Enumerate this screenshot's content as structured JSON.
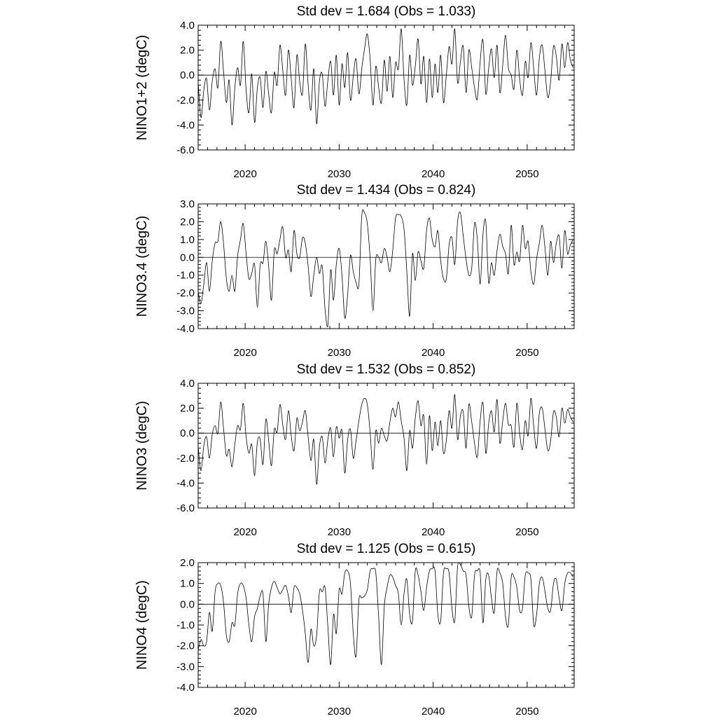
{
  "chart_data": [
    {
      "type": "line",
      "title": "Std dev = 1.684 (Obs = 1.033)",
      "ylabel": "NINO1+2 (degC)",
      "xlim": [
        2015,
        2055
      ],
      "ylim": [
        -6.0,
        4.0
      ],
      "xticks": [
        2020,
        2030,
        2040,
        2050
      ],
      "xtick_labels": [
        "2020",
        "2030",
        "2040",
        "2050"
      ],
      "yticks": [
        -6.0,
        -4.0,
        -2.0,
        0.0,
        2.0,
        4.0
      ],
      "ytick_labels": [
        "-6.0",
        "-4.0",
        "-2.0",
        "0.0",
        "2.0",
        "4.0"
      ],
      "grid": false,
      "x": [
        2015.0,
        2015.3,
        2015.6,
        2015.9,
        2016.2,
        2016.5,
        2016.8,
        2017.1,
        2017.4,
        2017.7,
        2018.0,
        2018.3,
        2018.6,
        2018.9,
        2019.2,
        2019.5,
        2019.8,
        2020.1,
        2020.4,
        2020.7,
        2021.0,
        2021.3,
        2021.6,
        2021.9,
        2022.2,
        2022.5,
        2022.8,
        2023.1,
        2023.4,
        2023.7,
        2024.0,
        2024.3,
        2024.6,
        2024.9,
        2025.2,
        2025.5,
        2025.8,
        2026.1,
        2026.4,
        2026.7,
        2027.0,
        2027.3,
        2027.6,
        2027.9,
        2028.2,
        2028.5,
        2028.8,
        2029.1,
        2029.4,
        2029.7,
        2030.0,
        2030.3,
        2030.6,
        2030.9,
        2031.2,
        2031.5,
        2031.8,
        2032.1,
        2032.4,
        2032.7,
        2033.0,
        2033.3,
        2033.6,
        2033.9,
        2034.2,
        2034.5,
        2034.8,
        2035.1,
        2035.4,
        2035.7,
        2036.0,
        2036.3,
        2036.6,
        2036.9,
        2037.2,
        2037.5,
        2037.8,
        2038.1,
        2038.4,
        2038.7,
        2039.0,
        2039.3,
        2039.6,
        2039.9,
        2040.2,
        2040.5,
        2040.8,
        2041.1,
        2041.4,
        2041.7,
        2042.0,
        2042.3,
        2042.6,
        2042.9,
        2043.2,
        2043.5,
        2043.8,
        2044.1,
        2044.4,
        2044.7,
        2045.0,
        2045.3,
        2045.6,
        2045.9,
        2046.2,
        2046.5,
        2046.8,
        2047.1,
        2047.4,
        2047.7,
        2048.0,
        2048.3,
        2048.6,
        2048.9,
        2049.2,
        2049.5,
        2049.8,
        2050.1,
        2050.4,
        2050.7,
        2051.0,
        2051.3,
        2051.6,
        2051.9,
        2052.2,
        2052.5,
        2052.8,
        2053.1,
        2053.4,
        2053.7,
        2054.0,
        2054.3,
        2054.6,
        2054.9
      ],
      "values": [
        -0.6,
        -3.4,
        -1.2,
        -0.3,
        -2.8,
        -0.5,
        0.5,
        -1.0,
        2.7,
        0.3,
        -2.2,
        -0.4,
        -4.0,
        -1.0,
        0.6,
        -0.8,
        2.7,
        -1.2,
        -3.0,
        0.1,
        -3.8,
        -1.0,
        -0.2,
        -2.6,
        0.3,
        -1.5,
        -3.0,
        0.2,
        -0.8,
        2.4,
        0.4,
        -1.6,
        2.0,
        -0.3,
        -2.6,
        1.6,
        -0.5,
        -1.5,
        2.5,
        -0.8,
        -2.8,
        0.5,
        -3.9,
        -0.5,
        0.1,
        -2.5,
        -0.4,
        1.1,
        -1.6,
        1.6,
        -2.4,
        0.9,
        -1.0,
        1.8,
        -2.0,
        -0.1,
        1.3,
        -1.5,
        0.5,
        2.1,
        3.3,
        1.2,
        -2.4,
        0.7,
        -1.0,
        -2.2,
        1.2,
        -1.3,
        1.5,
        -1.8,
        1.0,
        0.5,
        3.7,
        -0.3,
        -2.4,
        1.6,
        -0.8,
        0.7,
        2.9,
        -0.7,
        1.5,
        -2.2,
        1.3,
        -1.8,
        0.9,
        -1.4,
        1.6,
        -2.2,
        0.0,
        2.3,
        0.9,
        3.7,
        -0.6,
        1.1,
        2.3,
        -1.4,
        2.0,
        0.6,
        -1.0,
        -1.9,
        1.1,
        2.8,
        -1.5,
        0.5,
        2.1,
        -0.2,
        2.4,
        -1.4,
        0.8,
        3.2,
        0.6,
        0.0,
        -1.1,
        2.0,
        -0.3,
        -1.6,
        1.1,
        -0.2,
        2.6,
        0.5,
        -1.6,
        1.4,
        2.4,
        0.3,
        -1.8,
        -0.5,
        2.3,
        1.5,
        -0.4,
        2.5,
        0.6,
        2.6,
        1.2,
        0.6
      ]
    },
    {
      "type": "line",
      "title": "Std dev = 1.434 (Obs = 0.824)",
      "ylabel": "NINO3.4 (degC)",
      "xlim": [
        2015,
        2055
      ],
      "ylim": [
        -4.0,
        3.0
      ],
      "xticks": [
        2020,
        2030,
        2040,
        2050
      ],
      "xtick_labels": [
        "2020",
        "2030",
        "2040",
        "2050"
      ],
      "yticks": [
        -4.0,
        -3.0,
        -2.0,
        -1.0,
        0.0,
        1.0,
        2.0,
        3.0
      ],
      "ytick_labels": [
        "-4.0",
        "-3.0",
        "-2.0",
        "-1.0",
        "0.0",
        "1.0",
        "2.0",
        "3.0"
      ],
      "grid": false,
      "x": [
        2015.0,
        2015.3,
        2015.6,
        2015.9,
        2016.2,
        2016.5,
        2016.8,
        2017.1,
        2017.4,
        2017.7,
        2018.0,
        2018.3,
        2018.6,
        2018.9,
        2019.2,
        2019.5,
        2019.8,
        2020.1,
        2020.4,
        2020.7,
        2021.0,
        2021.3,
        2021.6,
        2021.9,
        2022.2,
        2022.5,
        2022.8,
        2023.1,
        2023.4,
        2023.7,
        2024.0,
        2024.3,
        2024.6,
        2024.9,
        2025.2,
        2025.5,
        2025.8,
        2026.1,
        2026.4,
        2026.7,
        2027.0,
        2027.3,
        2027.6,
        2027.9,
        2028.2,
        2028.5,
        2028.8,
        2029.1,
        2029.4,
        2029.7,
        2030.0,
        2030.3,
        2030.6,
        2030.9,
        2031.2,
        2031.5,
        2031.8,
        2032.1,
        2032.4,
        2032.7,
        2033.0,
        2033.3,
        2033.6,
        2033.9,
        2034.2,
        2034.5,
        2034.8,
        2035.1,
        2035.4,
        2035.7,
        2036.0,
        2036.3,
        2036.6,
        2036.9,
        2037.2,
        2037.5,
        2037.8,
        2038.1,
        2038.4,
        2038.7,
        2039.0,
        2039.3,
        2039.6,
        2039.9,
        2040.2,
        2040.5,
        2040.8,
        2041.1,
        2041.4,
        2041.7,
        2042.0,
        2042.3,
        2042.6,
        2042.9,
        2043.2,
        2043.5,
        2043.8,
        2044.1,
        2044.4,
        2044.7,
        2045.0,
        2045.3,
        2045.6,
        2045.9,
        2046.2,
        2046.5,
        2046.8,
        2047.1,
        2047.4,
        2047.7,
        2048.0,
        2048.3,
        2048.6,
        2048.9,
        2049.2,
        2049.5,
        2049.8,
        2050.1,
        2050.4,
        2050.7,
        2051.0,
        2051.3,
        2051.6,
        2051.9,
        2052.2,
        2052.5,
        2052.8,
        2053.1,
        2053.4,
        2053.7,
        2054.0,
        2054.3,
        2054.6,
        2054.9
      ],
      "values": [
        -1.9,
        -2.6,
        -1.5,
        -0.3,
        -1.9,
        -0.2,
        0.8,
        0.9,
        2.0,
        0.8,
        -1.2,
        -1.9,
        -1.0,
        -1.9,
        0.1,
        1.0,
        1.9,
        0.2,
        -1.2,
        -0.9,
        -0.4,
        -2.8,
        -0.4,
        -0.3,
        0.9,
        -0.5,
        -2.4,
        0.4,
        0.2,
        1.0,
        1.7,
        0.0,
        0.4,
        -0.8,
        1.5,
        0.2,
        0.0,
        1.1,
        0.8,
        -0.5,
        -2.2,
        -1.0,
        0.0,
        -0.9,
        -0.5,
        -2.9,
        -3.8,
        -0.7,
        -2.4,
        -0.4,
        0.5,
        -1.0,
        -3.4,
        -2.1,
        0.1,
        -0.8,
        -1.4,
        -1.5,
        2.3,
        2.5,
        1.9,
        -0.1,
        -3.0,
        -0.1,
        0.0,
        -0.3,
        0.5,
        0.0,
        -0.8,
        0.4,
        2.2,
        2.4,
        2.3,
        1.6,
        -0.8,
        -3.3,
        0.2,
        -1.3,
        0.3,
        -0.2,
        -0.6,
        1.5,
        2.2,
        1.0,
        0.6,
        1.5,
        -0.2,
        -1.2,
        -1.2,
        0.7,
        1.1,
        -0.4,
        2.0,
        2.5,
        1.2,
        -0.1,
        -1.0,
        -0.6,
        1.9,
        1.0,
        -1.5,
        1.3,
        2.0,
        -1.4,
        -0.3,
        -1.0,
        0.4,
        1.3,
        0.6,
        0.2,
        -0.9,
        1.8,
        -0.4,
        0.3,
        -0.2,
        1.8,
        0.5,
        0.9,
        -0.8,
        -1.5,
        -0.1,
        0.8,
        1.8,
        0.5,
        -1.0,
        0.9,
        -0.3,
        0.8,
        1.2,
        -0.6,
        1.5,
        0.2,
        0.7,
        1.0
      ]
    },
    {
      "type": "line",
      "title": "Std dev = 1.532 (Obs = 0.852)",
      "ylabel": "NINO3 (degC)",
      "xlim": [
        2015,
        2055
      ],
      "ylim": [
        -6.0,
        4.0
      ],
      "xticks": [
        2020,
        2030,
        2040,
        2050
      ],
      "xtick_labels": [
        "2020",
        "2030",
        "2040",
        "2050"
      ],
      "yticks": [
        -6.0,
        -4.0,
        -2.0,
        0.0,
        2.0,
        4.0
      ],
      "ytick_labels": [
        "-6.0",
        "-4.0",
        "-2.0",
        "0.0",
        "2.0",
        "4.0"
      ],
      "grid": false,
      "x": [
        2015.0,
        2015.3,
        2015.6,
        2015.9,
        2016.2,
        2016.5,
        2016.8,
        2017.1,
        2017.4,
        2017.7,
        2018.0,
        2018.3,
        2018.6,
        2018.9,
        2019.2,
        2019.5,
        2019.8,
        2020.1,
        2020.4,
        2020.7,
        2021.0,
        2021.3,
        2021.6,
        2021.9,
        2022.2,
        2022.5,
        2022.8,
        2023.1,
        2023.4,
        2023.7,
        2024.0,
        2024.3,
        2024.6,
        2024.9,
        2025.2,
        2025.5,
        2025.8,
        2026.1,
        2026.4,
        2026.7,
        2027.0,
        2027.3,
        2027.6,
        2027.9,
        2028.2,
        2028.5,
        2028.8,
        2029.1,
        2029.4,
        2029.7,
        2030.0,
        2030.3,
        2030.6,
        2030.9,
        2031.2,
        2031.5,
        2031.8,
        2032.1,
        2032.4,
        2032.7,
        2033.0,
        2033.3,
        2033.6,
        2033.9,
        2034.2,
        2034.5,
        2034.8,
        2035.1,
        2035.4,
        2035.7,
        2036.0,
        2036.3,
        2036.6,
        2036.9,
        2037.2,
        2037.5,
        2037.8,
        2038.1,
        2038.4,
        2038.7,
        2039.0,
        2039.3,
        2039.6,
        2039.9,
        2040.2,
        2040.5,
        2040.8,
        2041.1,
        2041.4,
        2041.7,
        2042.0,
        2042.3,
        2042.6,
        2042.9,
        2043.2,
        2043.5,
        2043.8,
        2044.1,
        2044.4,
        2044.7,
        2045.0,
        2045.3,
        2045.6,
        2045.9,
        2046.2,
        2046.5,
        2046.8,
        2047.1,
        2047.4,
        2047.7,
        2048.0,
        2048.3,
        2048.6,
        2048.9,
        2049.2,
        2049.5,
        2049.8,
        2050.1,
        2050.4,
        2050.7,
        2051.0,
        2051.3,
        2051.6,
        2051.9,
        2052.2,
        2052.5,
        2052.8,
        2053.1,
        2053.4,
        2053.7,
        2054.0,
        2054.3,
        2054.6,
        2054.9
      ],
      "values": [
        -1.1,
        -3.0,
        -1.0,
        -0.3,
        -2.0,
        -0.1,
        0.6,
        0.0,
        2.5,
        0.4,
        -1.8,
        -1.3,
        -2.7,
        -0.9,
        0.6,
        0.3,
        2.4,
        -0.3,
        -1.6,
        -0.9,
        -3.4,
        -0.7,
        -0.5,
        -2.5,
        1.1,
        -0.6,
        -2.6,
        0.3,
        0.1,
        2.3,
        0.7,
        -0.5,
        1.8,
        -0.2,
        -1.4,
        1.2,
        0.2,
        0.9,
        1.8,
        -0.3,
        -2.2,
        -0.5,
        -4.1,
        -1.1,
        -0.3,
        -2.4,
        -0.5,
        0.4,
        -1.9,
        0.5,
        -0.4,
        0.2,
        -3.2,
        -0.5,
        0.3,
        -2.0,
        -0.6,
        1.0,
        2.3,
        2.8,
        2.3,
        0.0,
        -2.9,
        0.2,
        -0.8,
        0.4,
        -0.2,
        -0.6,
        0.9,
        2.0,
        1.3,
        2.5,
        1.0,
        -0.4,
        -3.0,
        0.2,
        -1.2,
        1.2,
        2.6,
        0.6,
        1.4,
        -2.5,
        1.4,
        -1.4,
        0.9,
        -1.0,
        1.0,
        -1.6,
        -0.6,
        1.8,
        0.4,
        3.1,
        -0.5,
        1.4,
        1.7,
        -1.2,
        2.3,
        0.9,
        -0.8,
        -1.9,
        1.0,
        2.4,
        -1.6,
        0.7,
        1.8,
        0.1,
        2.7,
        -0.8,
        1.0,
        2.4,
        0.7,
        0.6,
        -1.1,
        2.4,
        0.0,
        -1.3,
        1.0,
        -0.2,
        2.8,
        0.5,
        -1.2,
        1.6,
        2.0,
        0.3,
        -1.4,
        -0.6,
        1.7,
        1.3,
        -0.3,
        2.0,
        0.8,
        1.9,
        1.3,
        0.9
      ]
    },
    {
      "type": "line",
      "title": "Std dev = 1.125 (Obs = 0.615)",
      "ylabel": "NINO4 (degC)",
      "xlim": [
        2015,
        2055
      ],
      "ylim": [
        -4.0,
        2.0
      ],
      "xticks": [
        2020,
        2030,
        2040,
        2050
      ],
      "xtick_labels": [
        "2020",
        "2030",
        "2040",
        "2050"
      ],
      "yticks": [
        -4.0,
        -3.0,
        -2.0,
        -1.0,
        0.0,
        1.0,
        2.0
      ],
      "ytick_labels": [
        "-4.0",
        "-3.0",
        "-2.0",
        "-1.0",
        "0.0",
        "1.0",
        "2.0"
      ],
      "grid": false,
      "x": [
        2015.0,
        2015.3,
        2015.6,
        2015.9,
        2016.2,
        2016.5,
        2016.8,
        2017.1,
        2017.4,
        2017.7,
        2018.0,
        2018.3,
        2018.6,
        2018.9,
        2019.2,
        2019.5,
        2019.8,
        2020.1,
        2020.4,
        2020.7,
        2021.0,
        2021.3,
        2021.6,
        2021.9,
        2022.2,
        2022.5,
        2022.8,
        2023.1,
        2023.4,
        2023.7,
        2024.0,
        2024.3,
        2024.6,
        2024.9,
        2025.2,
        2025.5,
        2025.8,
        2026.1,
        2026.4,
        2026.7,
        2027.0,
        2027.3,
        2027.6,
        2027.9,
        2028.2,
        2028.5,
        2028.8,
        2029.1,
        2029.4,
        2029.7,
        2030.0,
        2030.3,
        2030.6,
        2030.9,
        2031.2,
        2031.5,
        2031.8,
        2032.1,
        2032.4,
        2032.7,
        2033.0,
        2033.3,
        2033.6,
        2033.9,
        2034.2,
        2034.5,
        2034.8,
        2035.1,
        2035.4,
        2035.7,
        2036.0,
        2036.3,
        2036.6,
        2036.9,
        2037.2,
        2037.5,
        2037.8,
        2038.1,
        2038.4,
        2038.7,
        2039.0,
        2039.3,
        2039.6,
        2039.9,
        2040.2,
        2040.5,
        2040.8,
        2041.1,
        2041.4,
        2041.7,
        2042.0,
        2042.3,
        2042.6,
        2042.9,
        2043.2,
        2043.5,
        2043.8,
        2044.1,
        2044.4,
        2044.7,
        2045.0,
        2045.3,
        2045.6,
        2045.9,
        2046.2,
        2046.5,
        2046.8,
        2047.1,
        2047.4,
        2047.7,
        2048.0,
        2048.3,
        2048.6,
        2048.9,
        2049.2,
        2049.5,
        2049.8,
        2050.1,
        2050.4,
        2050.7,
        2051.0,
        2051.3,
        2051.6,
        2051.9,
        2052.2,
        2052.5,
        2052.8,
        2053.1,
        2053.4,
        2053.7,
        2054.0,
        2054.3,
        2054.6,
        2054.9
      ],
      "values": [
        -2.2,
        -1.7,
        -2.0,
        -1.8,
        -0.4,
        -1.3,
        0.6,
        1.0,
        0.9,
        0.1,
        -1.5,
        -1.8,
        -0.9,
        -1.0,
        0.5,
        1.0,
        0.9,
        0.3,
        -1.0,
        -1.8,
        -0.6,
        -0.2,
        0.4,
        0.5,
        -1.8,
        0.0,
        0.8,
        1.1,
        0.8,
        0.5,
        0.7,
        0.9,
        0.4,
        -0.4,
        0.8,
        0.8,
        0.5,
        -0.3,
        -1.4,
        -2.8,
        -1.2,
        -2.0,
        -1.5,
        0.6,
        0.6,
        0.8,
        -1.1,
        -2.9,
        -0.5,
        -1.4,
        0.7,
        0.5,
        1.5,
        1.6,
        1.0,
        -1.4,
        -2.5,
        0.2,
        0.3,
        0.4,
        0.7,
        1.6,
        1.7,
        1.5,
        -0.6,
        -2.9,
        -0.1,
        0.8,
        1.4,
        1.3,
        0.9,
        0.5,
        -1.0,
        0.5,
        1.2,
        -0.5,
        -0.8,
        1.6,
        1.4,
        0.6,
        -0.3,
        0.8,
        1.6,
        1.7,
        1.6,
        -0.5,
        -0.8,
        1.5,
        1.7,
        1.5,
        -0.2,
        -0.8,
        1.8,
        1.9,
        1.6,
        1.4,
        -0.1,
        -0.6,
        1.4,
        1.6,
        1.5,
        -0.9,
        1.2,
        1.4,
        0.3,
        -0.4,
        1.6,
        1.5,
        1.0,
        -0.6,
        -1.0,
        1.3,
        1.3,
        0.8,
        -0.3,
        -0.2,
        1.4,
        1.5,
        1.2,
        -1.0,
        -0.5,
        1.0,
        1.3,
        0.6,
        -0.2,
        -0.3,
        1.0,
        1.2,
        0.3,
        -0.3,
        1.0,
        1.5,
        1.5,
        1.3
      ]
    }
  ]
}
